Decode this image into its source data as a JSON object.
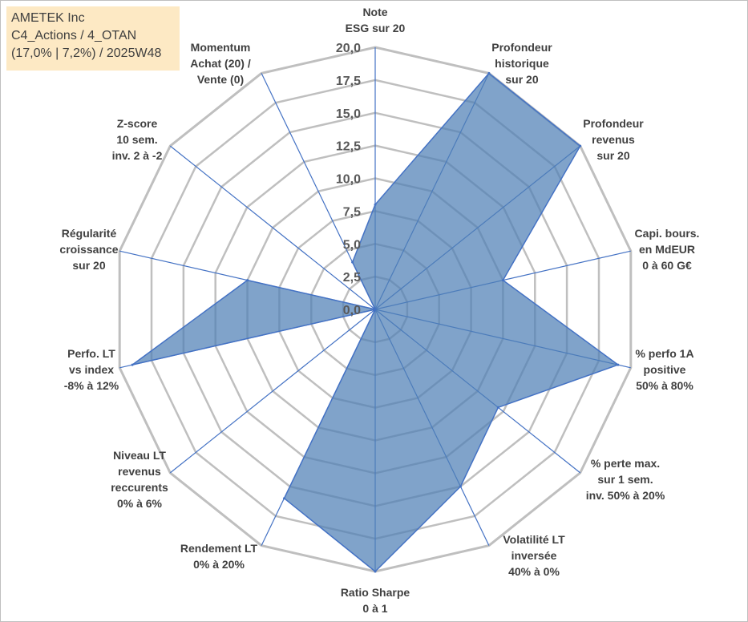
{
  "info": {
    "company": "AMETEK Inc",
    "category": "C4_Actions / 4_OTAN",
    "stats": "(17,0% | 7,2%) / 2025W48"
  },
  "colors": {
    "fill": "#4f7fb5",
    "stroke": "#4472c4",
    "spoke": "#4472c4",
    "grid": "#bfbfbf",
    "infoBox": "#fde9c4"
  },
  "chart_data": {
    "type": "radar",
    "title": "",
    "range": [
      0,
      20
    ],
    "ticks": [
      "0,0",
      "2,5",
      "5,0",
      "7,5",
      "10,0",
      "12,5",
      "15,0",
      "17,5",
      "20,0"
    ],
    "axes": [
      {
        "label": [
          "Note",
          "ESG sur 20"
        ],
        "value": 8.0
      },
      {
        "label": [
          "Profondeur",
          "historique",
          "sur 20"
        ],
        "value": 20.0
      },
      {
        "label": [
          "Profondeur",
          "revenus",
          "sur 20"
        ],
        "value": 20.0
      },
      {
        "label": [
          "Capi. bours.",
          "en MdEUR",
          "0 à 60 G€"
        ],
        "value": 10.0
      },
      {
        "label": [
          "% perfo 1A",
          "positive",
          "50% à 80%"
        ],
        "value": 19.0
      },
      {
        "label": [
          "% perte max.",
          "sur 1 sem.",
          "inv. 50% à 20%"
        ],
        "value": 12.0
      },
      {
        "label": [
          "Volatilité LT",
          "inversée",
          "40% à 0%"
        ],
        "value": 15.0
      },
      {
        "label": [
          "Ratio Sharpe",
          "0 à 1"
        ],
        "value": 20.0
      },
      {
        "label": [
          "Rendement LT",
          "0% à 20%"
        ],
        "value": 16.0
      },
      {
        "label": [
          "Niveau LT",
          "revenus",
          "reccurents",
          "0% à 6%"
        ],
        "value": 0.0
      },
      {
        "label": [
          "Perfo. LT",
          "vs index",
          "-8% à 12%"
        ],
        "value": 19.0
      },
      {
        "label": [
          "Régularité",
          "croissance",
          "sur 20"
        ],
        "value": 10.0
      },
      {
        "label": [
          "Z-score",
          "10 sem.",
          "inv. 2 à -2"
        ],
        "value": 0.0
      },
      {
        "label": [
          "Momentum",
          "Achat (20) /",
          "Vente (0)"
        ],
        "value": 4.0
      }
    ]
  }
}
